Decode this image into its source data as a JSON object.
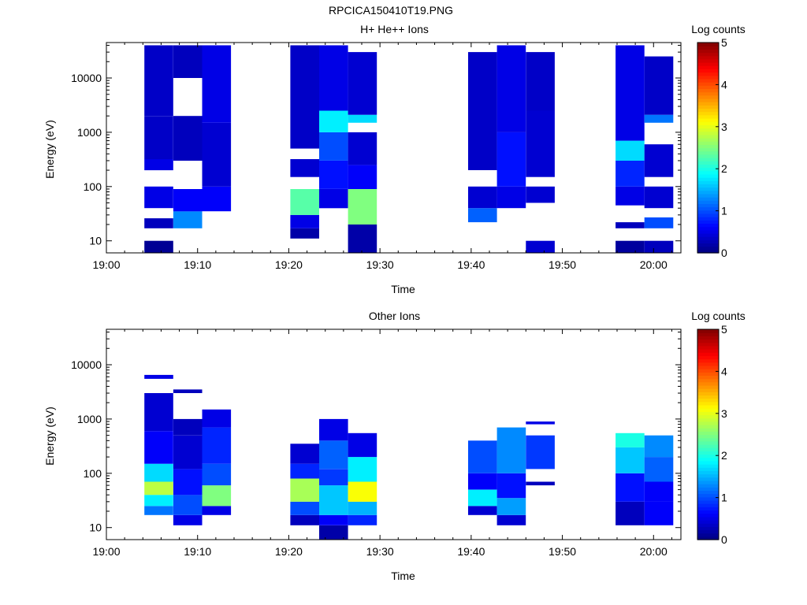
{
  "figure": {
    "title": "RPCICA150410T19.PNG"
  },
  "chart_data": [
    {
      "type": "heatmap",
      "title": "H+ He++ Ions",
      "xlabel": "Time",
      "ylabel": "Energy (eV)",
      "y_scale": "log",
      "ylim": [
        6,
        45000
      ],
      "xlim": [
        "19:00",
        "20:03"
      ],
      "x_ticks": [
        "19:00",
        "19:10",
        "19:20",
        "19:30",
        "19:40",
        "19:50",
        "20:00"
      ],
      "y_ticks": [
        "10",
        "100",
        "1000",
        "10000"
      ],
      "colorbar": {
        "label": "Log counts",
        "min": 0,
        "max": 5,
        "ticks": [
          "0",
          "1",
          "2",
          "3",
          "4",
          "5"
        ]
      },
      "time_columns": [
        {
          "x": [
            "19:04:10",
            "19:07:20"
          ],
          "cells": [
            [
              6,
              10,
              0.1
            ],
            [
              17,
              26,
              0.3
            ],
            [
              40,
              100,
              0.5
            ],
            [
              200,
              320,
              0.5
            ],
            [
              320,
              2000,
              0.35
            ],
            [
              2000,
              40000,
              0.35
            ]
          ]
        },
        {
          "x": [
            "19:07:20",
            "19:10:30"
          ],
          "cells": [
            [
              17,
              35,
              1.3
            ],
            [
              35,
              90,
              0.6
            ],
            [
              300,
              2000,
              0.3
            ],
            [
              10000,
              40000,
              0.3
            ]
          ]
        },
        {
          "x": [
            "19:10:30",
            "19:13:40"
          ],
          "cells": [
            [
              35,
              100,
              0.6
            ],
            [
              100,
              1500,
              0.4
            ],
            [
              1500,
              40000,
              0.5
            ]
          ]
        },
        {
          "x": [
            "19:20:10",
            "19:23:20"
          ],
          "cells": [
            [
              11,
              17,
              0.2
            ],
            [
              17,
              30,
              0.5
            ],
            [
              30,
              90,
              2.3
            ],
            [
              150,
              320,
              0.4
            ],
            [
              500,
              40000,
              0.35
            ]
          ]
        },
        {
          "x": [
            "19:23:20",
            "19:26:30"
          ],
          "cells": [
            [
              40,
              90,
              0.5
            ],
            [
              90,
              300,
              0.7
            ],
            [
              300,
              1000,
              1.0
            ],
            [
              1000,
              2500,
              1.8
            ],
            [
              2500,
              40000,
              0.5
            ]
          ]
        },
        {
          "x": [
            "19:26:30",
            "19:29:40"
          ],
          "cells": [
            [
              6,
              20,
              0.2
            ],
            [
              20,
              90,
              2.5
            ],
            [
              90,
              250,
              0.6
            ],
            [
              250,
              1000,
              0.4
            ],
            [
              1500,
              2100,
              1.7
            ],
            [
              2100,
              30000,
              0.4
            ]
          ]
        },
        {
          "x": [
            "19:39:40",
            "19:42:50"
          ],
          "cells": [
            [
              22,
              40,
              1.1
            ],
            [
              40,
              100,
              0.4
            ],
            [
              200,
              30000,
              0.35
            ]
          ]
        },
        {
          "x": [
            "19:42:50",
            "19:46:00"
          ],
          "cells": [
            [
              40,
              100,
              0.5
            ],
            [
              100,
              1000,
              0.7
            ],
            [
              1000,
              40000,
              0.5
            ]
          ]
        },
        {
          "x": [
            "19:46:00",
            "19:49:10"
          ],
          "cells": [
            [
              6,
              10,
              0.4
            ],
            [
              50,
              100,
              0.4
            ],
            [
              150,
              2500,
              0.4
            ],
            [
              2500,
              30000,
              0.35
            ]
          ]
        },
        {
          "x": [
            "19:55:50",
            "19:59:00"
          ],
          "cells": [
            [
              6,
              10,
              0.15
            ],
            [
              17,
              22,
              0.3
            ],
            [
              45,
              100,
              0.5
            ],
            [
              100,
              300,
              0.8
            ],
            [
              300,
              700,
              1.7
            ],
            [
              700,
              40000,
              0.5
            ]
          ]
        },
        {
          "x": [
            "19:59:00",
            "20:02:10"
          ],
          "cells": [
            [
              6,
              10,
              0.3
            ],
            [
              17,
              27,
              1.0
            ],
            [
              40,
              100,
              0.4
            ],
            [
              150,
              600,
              0.4
            ],
            [
              1500,
              2100,
              1.2
            ],
            [
              2100,
              25000,
              0.35
            ]
          ]
        }
      ]
    },
    {
      "type": "heatmap",
      "title": "Other Ions",
      "xlabel": "Time",
      "ylabel": "Energy (eV)",
      "y_scale": "log",
      "ylim": [
        6,
        45000
      ],
      "xlim": [
        "19:00",
        "20:03"
      ],
      "x_ticks": [
        "19:00",
        "19:10",
        "19:20",
        "19:30",
        "19:40",
        "19:50",
        "20:00"
      ],
      "y_ticks": [
        "10",
        "100",
        "1000",
        "10000"
      ],
      "colorbar": {
        "label": "Log counts",
        "min": 0,
        "max": 5,
        "ticks": [
          "0",
          "1",
          "2",
          "3",
          "4",
          "5"
        ]
      },
      "time_columns": [
        {
          "x": [
            "19:04:10",
            "19:07:20"
          ],
          "cells": [
            [
              17,
              25,
              1.2
            ],
            [
              25,
              40,
              1.8
            ],
            [
              40,
              70,
              2.8
            ],
            [
              70,
              150,
              1.7
            ],
            [
              150,
              600,
              0.6
            ],
            [
              600,
              3000,
              0.4
            ],
            [
              5500,
              6500,
              0.5
            ]
          ]
        },
        {
          "x": [
            "19:07:20",
            "19:10:30"
          ],
          "cells": [
            [
              11,
              17,
              0.5
            ],
            [
              17,
              40,
              1.0
            ],
            [
              40,
              120,
              0.7
            ],
            [
              120,
              500,
              0.4
            ],
            [
              500,
              1000,
              0.3
            ],
            [
              3000,
              3500,
              0.3
            ]
          ]
        },
        {
          "x": [
            "19:10:30",
            "19:13:40"
          ],
          "cells": [
            [
              17,
              25,
              0.5
            ],
            [
              25,
              60,
              2.5
            ],
            [
              60,
              150,
              1.0
            ],
            [
              150,
              700,
              0.8
            ],
            [
              700,
              1500,
              0.5
            ]
          ]
        },
        {
          "x": [
            "19:20:10",
            "19:23:20"
          ],
          "cells": [
            [
              11,
              17,
              0.3
            ],
            [
              17,
              30,
              1.0
            ],
            [
              30,
              80,
              2.7
            ],
            [
              80,
              150,
              0.8
            ],
            [
              150,
              350,
              0.4
            ]
          ]
        },
        {
          "x": [
            "19:23:20",
            "19:26:30"
          ],
          "cells": [
            [
              6,
              11,
              0.2
            ],
            [
              11,
              17,
              0.6
            ],
            [
              17,
              60,
              1.6
            ],
            [
              60,
              120,
              0.9
            ],
            [
              120,
              400,
              1.1
            ],
            [
              400,
              1000,
              0.5
            ]
          ]
        },
        {
          "x": [
            "19:26:30",
            "19:29:40"
          ],
          "cells": [
            [
              11,
              17,
              0.8
            ],
            [
              17,
              30,
              1.5
            ],
            [
              30,
              70,
              3.1
            ],
            [
              70,
              200,
              1.8
            ],
            [
              200,
              550,
              0.5
            ]
          ]
        },
        {
          "x": [
            "19:39:40",
            "19:42:50"
          ],
          "cells": [
            [
              17,
              25,
              0.4
            ],
            [
              25,
              50,
              1.8
            ],
            [
              50,
              100,
              0.6
            ],
            [
              100,
              400,
              1.0
            ]
          ]
        },
        {
          "x": [
            "19:42:50",
            "19:46:00"
          ],
          "cells": [
            [
              11,
              17,
              0.4
            ],
            [
              17,
              35,
              1.4
            ],
            [
              35,
              100,
              0.7
            ],
            [
              100,
              700,
              1.3
            ]
          ]
        },
        {
          "x": [
            "19:46:00",
            "19:49:10"
          ],
          "cells": [
            [
              60,
              70,
              0.3
            ],
            [
              120,
              500,
              0.9
            ],
            [
              800,
              900,
              0.5
            ]
          ]
        },
        {
          "x": [
            "19:55:50",
            "19:59:00"
          ],
          "cells": [
            [
              11,
              30,
              0.3
            ],
            [
              30,
              100,
              0.7
            ],
            [
              100,
              300,
              1.6
            ],
            [
              300,
              550,
              2.0
            ]
          ]
        },
        {
          "x": [
            "19:59:00",
            "20:02:10"
          ],
          "cells": [
            [
              11,
              30,
              0.6
            ],
            [
              30,
              70,
              0.6
            ],
            [
              70,
              200,
              1.1
            ],
            [
              200,
              500,
              1.3
            ]
          ]
        }
      ]
    }
  ],
  "colors": {
    "axis": "#000000",
    "background": "#ffffff"
  }
}
